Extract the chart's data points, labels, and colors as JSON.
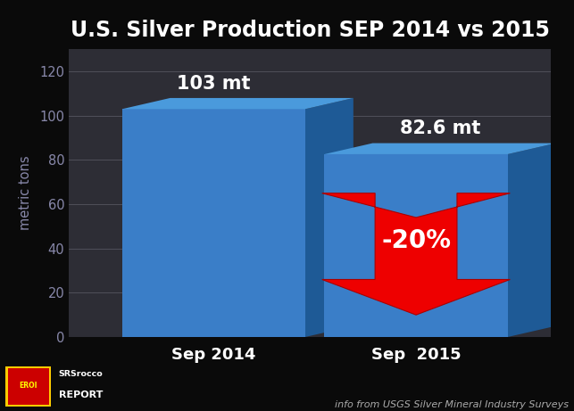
{
  "title": "U.S. Silver Production SEP 2014 vs 2015",
  "categories": [
    "Sep 2014",
    "Sep  2015"
  ],
  "values": [
    103,
    82.6
  ],
  "bar_labels": [
    "103 mt",
    "82.6 mt"
  ],
  "bar_color_front": "#3A7EC8",
  "bar_color_right": "#1e5a96",
  "bar_color_top": "#4a9adc",
  "background_color": "#0a0a0a",
  "plot_bg_color": "#2d2d35",
  "ylabel": "metric tons",
  "ylim": [
    0,
    130
  ],
  "yticks": [
    0,
    20,
    40,
    60,
    80,
    100,
    120
  ],
  "arrow_label": "-20%",
  "arrow_color": "#EE0000",
  "arrow_dark": "#AA0000",
  "title_color": "#ffffff",
  "label_color": "#ffffff",
  "tick_color": "#8888aa",
  "ylabel_color": "#8888aa",
  "footer_text": "info from USGS Silver Mineral Industry Surveys",
  "footer_color": "#aaaaaa",
  "title_fontsize": 17,
  "bar_label_fontsize": 15,
  "cat_label_fontsize": 13,
  "arrow_fontsize": 20
}
